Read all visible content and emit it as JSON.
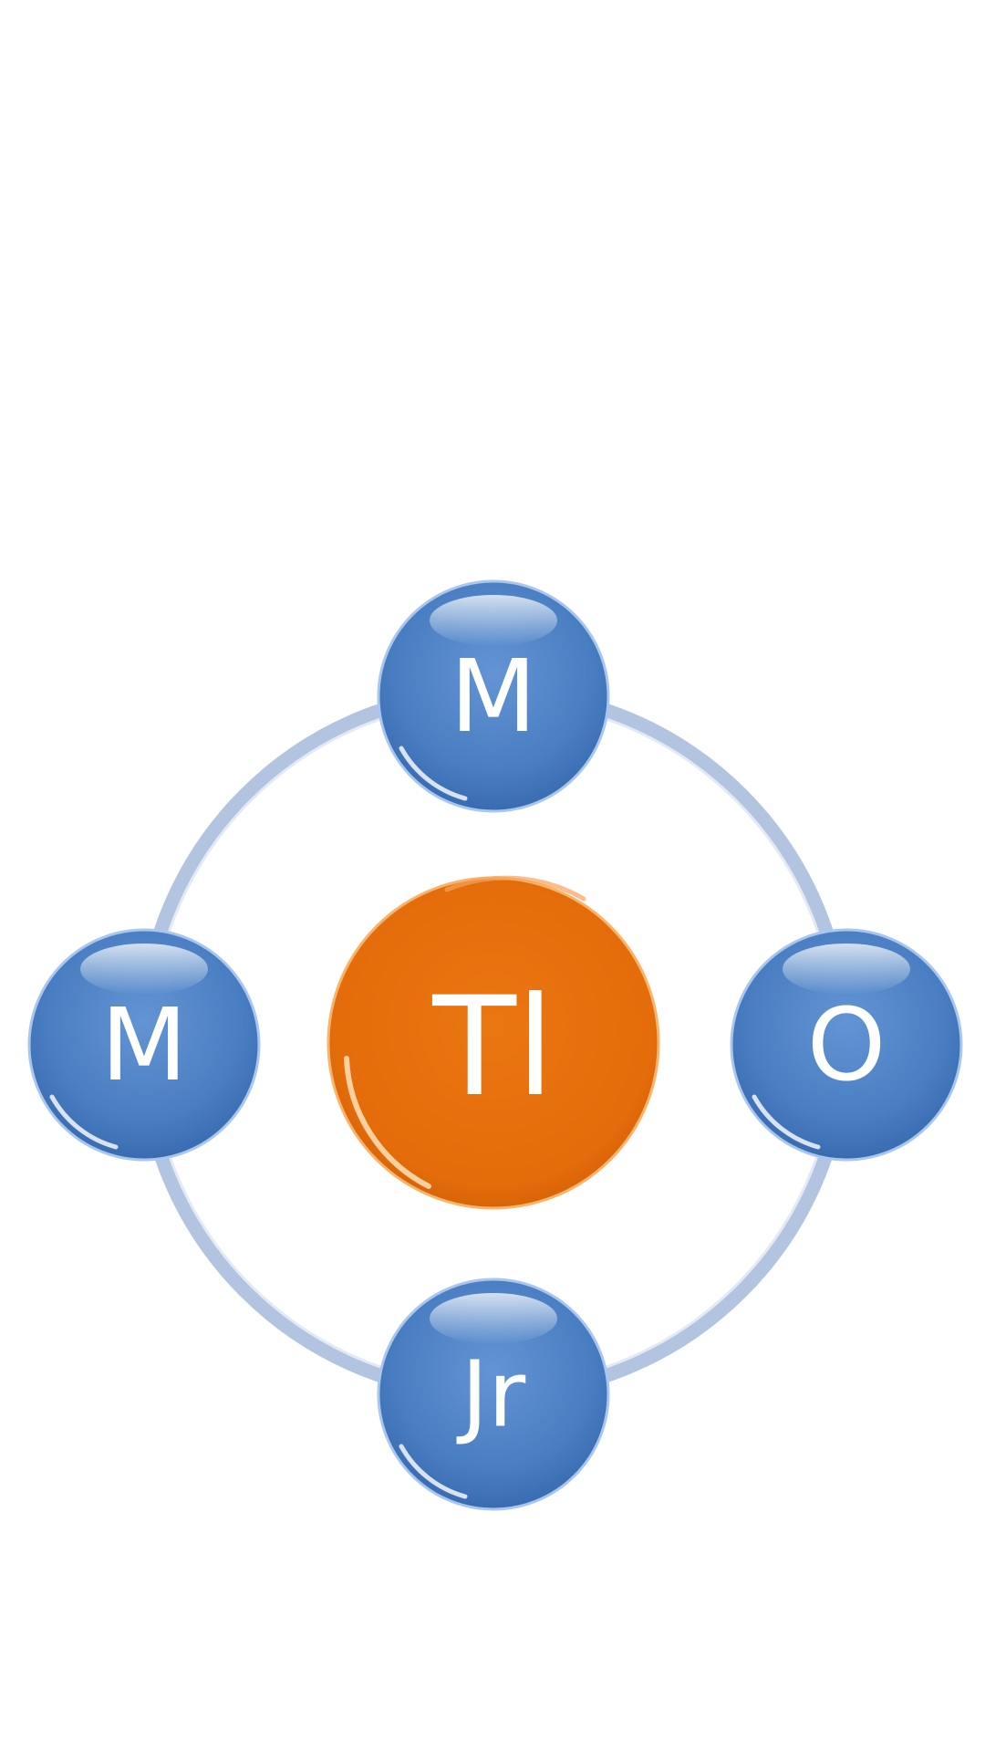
{
  "diagram": {
    "center": {
      "label": "Tl",
      "color": "#E46C0A"
    },
    "nodes": [
      {
        "id": "top",
        "label": "M",
        "color": "#4A7EC2"
      },
      {
        "id": "left",
        "label": "M",
        "color": "#4A7EC2"
      },
      {
        "id": "right",
        "label": "O",
        "color": "#4A7EC2"
      },
      {
        "id": "bottom",
        "label": "Jr",
        "color": "#4A7EC2"
      }
    ],
    "ring_color": "#B3C4E0"
  }
}
